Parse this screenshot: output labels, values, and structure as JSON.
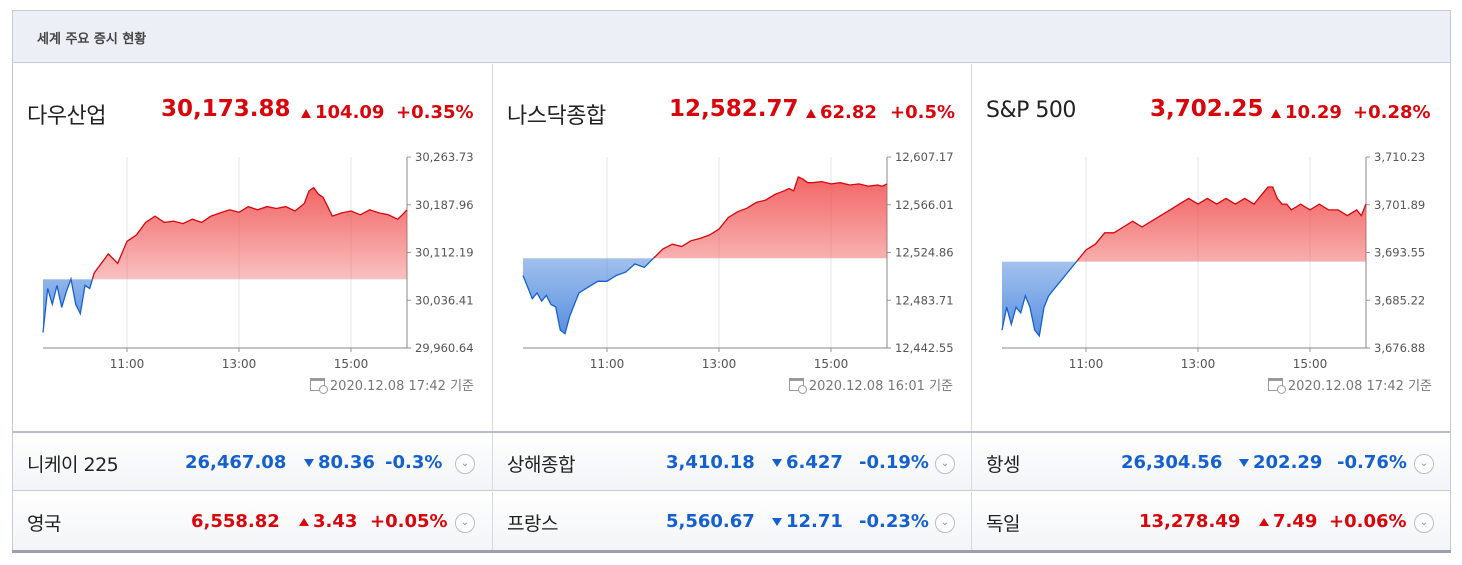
{
  "header": {
    "title": "세계 주요 증시 현황"
  },
  "panels": [
    {
      "name": "다우산업",
      "value": "30,173.88",
      "change": "104.09",
      "percent": "+0.35%",
      "date": "2020.12.08 17:42 기준"
    },
    {
      "name": "나스닥종합",
      "value": "12,582.77",
      "change": "62.82",
      "percent": "+0.5%",
      "date": "2020.12.08 16:01 기준"
    },
    {
      "name": "S&P 500",
      "value": "3,702.25",
      "change": "10.29",
      "percent": "+0.28%",
      "date": "2020.12.08 17:42 기준"
    }
  ],
  "rows": [
    {
      "name": "니케이 225",
      "value": "26,467.08",
      "change": "80.36",
      "percent": "-0.3%",
      "direction": "down"
    },
    {
      "name": "상해종합",
      "value": "3,410.18",
      "change": "6.427",
      "percent": "-0.19%",
      "direction": "down"
    },
    {
      "name": "항셍",
      "value": "26,304.56",
      "change": "202.29",
      "percent": "-0.76%",
      "direction": "down"
    },
    {
      "name": "영국",
      "value": "6,558.82",
      "change": "3.43",
      "percent": "+0.05%",
      "direction": "up"
    },
    {
      "name": "프랑스",
      "value": "5,560.67",
      "change": "12.71",
      "percent": "-0.23%",
      "direction": "down"
    },
    {
      "name": "독일",
      "value": "13,278.49",
      "change": "7.49",
      "percent": "+0.06%",
      "direction": "up"
    }
  ],
  "colors": {
    "up": "#d8060c",
    "down": "#1560d0"
  },
  "icons": {
    "calendar": "calendar-clock-icon",
    "expand": "chevron-down-circle-icon"
  },
  "chart_data": [
    {
      "type": "line",
      "series_name": "다우산업",
      "x_ticks": [
        "11:00",
        "13:00",
        "15:00"
      ],
      "y_ticks": [
        "30,263.73",
        "30,187.96",
        "30,112.19",
        "30,036.41",
        "29,960.64"
      ],
      "ylim": [
        29960.64,
        30263.73
      ],
      "baseline": 30069.79,
      "time_range": [
        "09:30",
        "16:00"
      ],
      "points": [
        [
          "09:30",
          29985
        ],
        [
          "09:35",
          30055
        ],
        [
          "09:40",
          30030
        ],
        [
          "09:45",
          30060
        ],
        [
          "09:50",
          30025
        ],
        [
          "09:55",
          30050
        ],
        [
          "10:00",
          30070
        ],
        [
          "10:05",
          30030
        ],
        [
          "10:10",
          30015
        ],
        [
          "10:15",
          30060
        ],
        [
          "10:20",
          30055
        ],
        [
          "10:25",
          30080
        ],
        [
          "10:30",
          30090
        ],
        [
          "10:40",
          30110
        ],
        [
          "10:50",
          30095
        ],
        [
          "11:00",
          30130
        ],
        [
          "11:10",
          30140
        ],
        [
          "11:20",
          30160
        ],
        [
          "11:30",
          30170
        ],
        [
          "11:40",
          30160
        ],
        [
          "11:50",
          30162
        ],
        [
          "12:00",
          30158
        ],
        [
          "12:10",
          30165
        ],
        [
          "12:20",
          30160
        ],
        [
          "12:30",
          30170
        ],
        [
          "12:40",
          30175
        ],
        [
          "12:50",
          30180
        ],
        [
          "13:00",
          30176
        ],
        [
          "13:10",
          30185
        ],
        [
          "13:20",
          30180
        ],
        [
          "13:30",
          30185
        ],
        [
          "13:40",
          30182
        ],
        [
          "13:50",
          30185
        ],
        [
          "14:00",
          30178
        ],
        [
          "14:10",
          30190
        ],
        [
          "14:15",
          30210
        ],
        [
          "14:20",
          30215
        ],
        [
          "14:25",
          30205
        ],
        [
          "14:30",
          30200
        ],
        [
          "14:35",
          30185
        ],
        [
          "14:40",
          30170
        ],
        [
          "14:50",
          30175
        ],
        [
          "15:00",
          30178
        ],
        [
          "15:10",
          30172
        ],
        [
          "15:20",
          30180
        ],
        [
          "15:30",
          30175
        ],
        [
          "15:40",
          30172
        ],
        [
          "15:50",
          30165
        ],
        [
          "15:55",
          30172
        ],
        [
          "16:00",
          30180
        ]
      ]
    },
    {
      "type": "line",
      "series_name": "나스닥종합",
      "x_ticks": [
        "11:00",
        "13:00",
        "15:00"
      ],
      "y_ticks": [
        "12,607.17",
        "12,566.01",
        "12,524.86",
        "12,483.71",
        "12,442.55"
      ],
      "ylim": [
        12442.55,
        12607.17
      ],
      "baseline": 12519.95,
      "time_range": [
        "09:30",
        "16:00"
      ],
      "points": [
        [
          "09:30",
          12505
        ],
        [
          "09:35",
          12495
        ],
        [
          "09:40",
          12485
        ],
        [
          "09:45",
          12490
        ],
        [
          "09:50",
          12483
        ],
        [
          "09:55",
          12488
        ],
        [
          "10:00",
          12480
        ],
        [
          "10:05",
          12478
        ],
        [
          "10:10",
          12458
        ],
        [
          "10:15",
          12455
        ],
        [
          "10:20",
          12470
        ],
        [
          "10:25",
          12480
        ],
        [
          "10:30",
          12490
        ],
        [
          "10:40",
          12495
        ],
        [
          "10:50",
          12500
        ],
        [
          "11:00",
          12500
        ],
        [
          "11:10",
          12505
        ],
        [
          "11:20",
          12508
        ],
        [
          "11:30",
          12515
        ],
        [
          "11:40",
          12512
        ],
        [
          "11:50",
          12520
        ],
        [
          "12:00",
          12528
        ],
        [
          "12:10",
          12532
        ],
        [
          "12:20",
          12530
        ],
        [
          "12:30",
          12535
        ],
        [
          "12:40",
          12537
        ],
        [
          "12:50",
          12540
        ],
        [
          "13:00",
          12545
        ],
        [
          "13:10",
          12555
        ],
        [
          "13:20",
          12560
        ],
        [
          "13:30",
          12563
        ],
        [
          "13:40",
          12568
        ],
        [
          "13:50",
          12570
        ],
        [
          "14:00",
          12575
        ],
        [
          "14:10",
          12578
        ],
        [
          "14:15",
          12580
        ],
        [
          "14:20",
          12578
        ],
        [
          "14:25",
          12590
        ],
        [
          "14:30",
          12588
        ],
        [
          "14:35",
          12585
        ],
        [
          "14:40",
          12585
        ],
        [
          "14:50",
          12586
        ],
        [
          "15:00",
          12584
        ],
        [
          "15:10",
          12585
        ],
        [
          "15:20",
          12583
        ],
        [
          "15:30",
          12584
        ],
        [
          "15:40",
          12582
        ],
        [
          "15:50",
          12583
        ],
        [
          "15:55",
          12582
        ],
        [
          "16:00",
          12584
        ]
      ]
    },
    {
      "type": "line",
      "series_name": "S&P 500",
      "x_ticks": [
        "11:00",
        "13:00",
        "15:00"
      ],
      "y_ticks": [
        "3,710.23",
        "3,701.89",
        "3,693.55",
        "3,685.22",
        "3,676.88"
      ],
      "ylim": [
        3676.88,
        3710.23
      ],
      "baseline": 3691.96,
      "time_range": [
        "09:30",
        "16:00"
      ],
      "points": [
        [
          "09:30",
          3680
        ],
        [
          "09:35",
          3684
        ],
        [
          "09:40",
          3681
        ],
        [
          "09:45",
          3684
        ],
        [
          "09:50",
          3683
        ],
        [
          "09:55",
          3686
        ],
        [
          "10:00",
          3684
        ],
        [
          "10:05",
          3680
        ],
        [
          "10:10",
          3679
        ],
        [
          "10:15",
          3684
        ],
        [
          "10:20",
          3686
        ],
        [
          "10:25",
          3687
        ],
        [
          "10:30",
          3688
        ],
        [
          "10:40",
          3690
        ],
        [
          "10:50",
          3692
        ],
        [
          "11:00",
          3694
        ],
        [
          "11:10",
          3695
        ],
        [
          "11:20",
          3697
        ],
        [
          "11:30",
          3697
        ],
        [
          "11:40",
          3698
        ],
        [
          "11:50",
          3699
        ],
        [
          "12:00",
          3698
        ],
        [
          "12:10",
          3699
        ],
        [
          "12:20",
          3700
        ],
        [
          "12:30",
          3701
        ],
        [
          "12:40",
          3702
        ],
        [
          "12:50",
          3703
        ],
        [
          "13:00",
          3702
        ],
        [
          "13:10",
          3703
        ],
        [
          "13:20",
          3702
        ],
        [
          "13:30",
          3703
        ],
        [
          "13:40",
          3702
        ],
        [
          "13:50",
          3703
        ],
        [
          "14:00",
          3702
        ],
        [
          "14:10",
          3704
        ],
        [
          "14:15",
          3705
        ],
        [
          "14:20",
          3705
        ],
        [
          "14:25",
          3703
        ],
        [
          "14:30",
          3702
        ],
        [
          "14:35",
          3702
        ],
        [
          "14:40",
          3701
        ],
        [
          "14:50",
          3702
        ],
        [
          "15:00",
          3701
        ],
        [
          "15:10",
          3702
        ],
        [
          "15:20",
          3701
        ],
        [
          "15:30",
          3701
        ],
        [
          "15:40",
          3700
        ],
        [
          "15:50",
          3701
        ],
        [
          "15:55",
          3700
        ],
        [
          "16:00",
          3702
        ]
      ]
    }
  ]
}
